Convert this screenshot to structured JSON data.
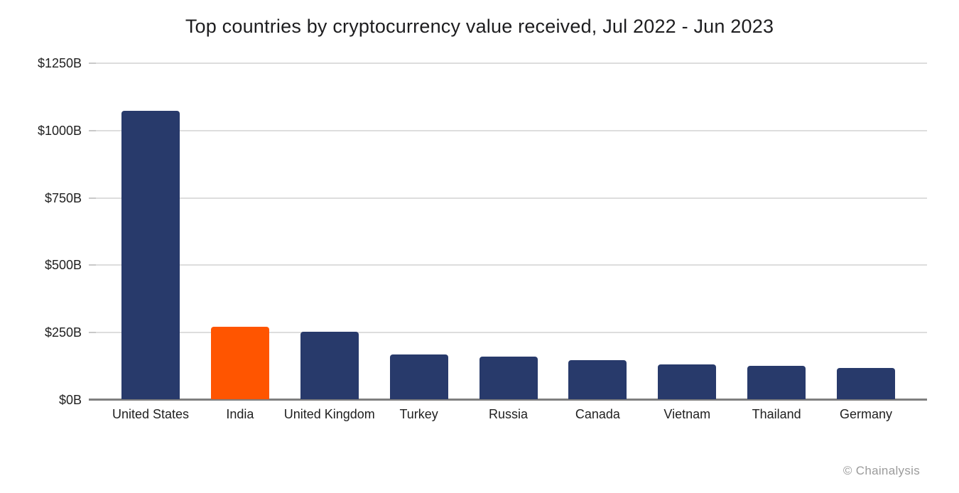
{
  "chart_data": {
    "type": "bar",
    "title": "Top countries by cryptocurrency value received, Jul 2022 - Jun 2023",
    "categories": [
      "United States",
      "India",
      "United Kingdom",
      "Turkey",
      "Russia",
      "Canada",
      "Vietnam",
      "Thailand",
      "Germany"
    ],
    "values": [
      1070,
      270,
      250,
      165,
      158,
      145,
      130,
      123,
      116
    ],
    "value_unit": "billions of USD",
    "ylim": [
      0,
      1250
    ],
    "yticks": [
      0,
      250,
      500,
      750,
      1000,
      1250
    ],
    "ytick_labels": [
      "$0B",
      "$250B",
      "$500B",
      "$750B",
      "$1000B",
      "$1250B"
    ],
    "xlabel": "",
    "ylabel": "",
    "grid": true,
    "legend_position": "none",
    "highlight_category": "India",
    "bar_color": "#283a6b",
    "highlight_color": "#ff5500"
  },
  "colors": {
    "gridline": "#dddddd",
    "axis": "#7f7f7f",
    "text": "#1f1f1f",
    "credit": "#9b9b9b",
    "background": "#ffffff"
  },
  "credit": {
    "text": "© Chainalysis"
  }
}
